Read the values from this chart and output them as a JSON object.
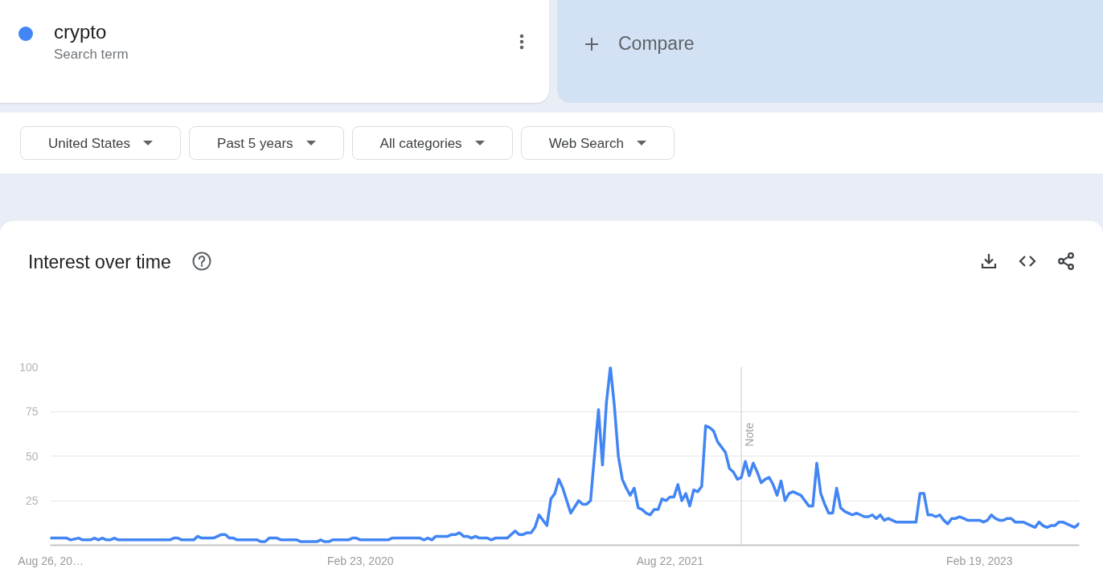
{
  "chart_data": {
    "type": "line",
    "title": "Interest over time",
    "annotations": [
      "Search term",
      "Compare",
      "United States",
      "Past 5 years",
      "All categories",
      "Web Search"
    ],
    "series": [
      {
        "name": "crypto",
        "color": "#4285f4",
        "x": [
          "2018-08-26",
          "2018-09-23",
          "2018-09-30",
          "2018-10-14",
          "2018-10-21",
          "2018-11-04",
          "2018-11-11",
          "2018-11-18",
          "2018-11-25",
          "2018-12-02",
          "2018-12-09",
          "2018-12-16",
          "2018-12-23",
          "2019-03-24",
          "2019-03-31",
          "2019-04-07",
          "2019-04-14",
          "2019-05-05",
          "2019-05-12",
          "2019-05-19",
          "2019-06-09",
          "2019-06-23",
          "2019-06-30",
          "2019-07-07",
          "2019-07-14",
          "2019-07-21",
          "2019-08-25",
          "2019-09-01",
          "2019-09-08",
          "2019-09-15",
          "2019-09-29",
          "2019-10-06",
          "2019-11-03",
          "2019-11-10",
          "2019-12-08",
          "2019-12-15",
          "2019-12-22",
          "2019-12-29",
          "2020-01-05",
          "2020-02-02",
          "2020-02-09",
          "2020-02-16",
          "2020-02-23",
          "2020-04-12",
          "2020-04-19",
          "2020-06-07",
          "2020-06-14",
          "2020-06-21",
          "2020-06-28",
          "2020-07-05",
          "2020-07-26",
          "2020-08-02",
          "2020-08-09",
          "2020-08-16",
          "2020-08-23",
          "2020-08-30",
          "2020-09-06",
          "2020-09-13",
          "2020-09-20",
          "2020-10-04",
          "2020-10-11",
          "2020-10-18",
          "2020-11-08",
          "2020-11-22",
          "2020-11-29",
          "2020-12-06",
          "2020-12-13",
          "2020-12-20",
          "2020-12-27",
          "2021-01-03",
          "2021-01-17",
          "2021-01-24",
          "2021-01-31",
          "2021-02-07",
          "2021-02-14",
          "2021-02-28",
          "2021-03-14",
          "2021-03-21",
          "2021-03-28",
          "2021-04-04",
          "2021-04-18",
          "2021-04-25",
          "2021-05-02",
          "2021-05-09",
          "2021-05-16",
          "2021-05-23",
          "2021-05-30",
          "2021-06-06",
          "2021-06-13",
          "2021-06-20",
          "2021-06-27",
          "2021-07-04",
          "2021-07-11",
          "2021-07-18",
          "2021-07-25",
          "2021-08-01",
          "2021-08-08",
          "2021-08-15",
          "2021-08-22",
          "2021-08-29",
          "2021-09-05",
          "2021-09-12",
          "2021-09-19",
          "2021-09-26",
          "2021-10-03",
          "2021-10-10",
          "2021-10-17",
          "2021-10-24",
          "2021-10-31",
          "2021-11-07",
          "2021-11-14",
          "2021-11-21",
          "2021-11-28",
          "2021-12-05",
          "2021-12-12",
          "2021-12-19",
          "2021-12-26",
          "2022-01-02",
          "2022-01-09",
          "2022-01-16",
          "2022-01-23",
          "2022-01-30",
          "2022-02-06",
          "2022-02-13",
          "2022-02-20",
          "2022-02-27",
          "2022-03-06",
          "2022-03-13",
          "2022-03-20",
          "2022-03-27",
          "2022-04-03",
          "2022-04-10",
          "2022-04-17",
          "2022-04-24",
          "2022-05-01",
          "2022-05-08",
          "2022-05-15",
          "2022-05-22",
          "2022-05-29",
          "2022-06-05",
          "2022-06-12",
          "2022-06-19",
          "2022-06-26",
          "2022-07-03",
          "2022-07-10",
          "2022-07-17",
          "2022-07-24",
          "2022-07-31",
          "2022-08-07",
          "2022-08-14",
          "2022-08-21",
          "2022-08-28",
          "2022-09-04",
          "2022-09-11",
          "2022-09-18",
          "2022-09-25",
          "2022-10-30",
          "2022-11-06",
          "2022-11-13",
          "2022-11-20",
          "2022-11-27",
          "2022-12-04",
          "2022-12-11",
          "2022-12-18",
          "2022-12-25",
          "2023-01-01",
          "2023-01-08",
          "2023-01-15",
          "2023-01-22",
          "2023-01-29",
          "2023-02-19",
          "2023-02-26",
          "2023-03-05",
          "2023-03-12",
          "2023-03-19",
          "2023-03-26",
          "2023-04-02",
          "2023-04-09",
          "2023-04-16",
          "2023-04-23",
          "2023-05-07",
          "2023-05-14",
          "2023-05-21",
          "2023-05-28",
          "2023-06-04",
          "2023-06-11",
          "2023-06-18",
          "2023-06-25",
          "2023-07-02",
          "2023-07-09",
          "2023-07-16",
          "2023-07-23",
          "2023-07-30",
          "2023-08-06",
          "2023-08-13"
        ],
        "values": [
          4,
          4,
          3,
          4,
          3,
          3,
          4,
          3,
          4,
          3,
          3,
          4,
          3,
          3,
          4,
          4,
          3,
          3,
          5,
          4,
          4,
          6,
          6,
          4,
          4,
          3,
          3,
          2,
          2,
          4,
          4,
          3,
          3,
          2,
          2,
          3,
          2,
          2,
          3,
          3,
          4,
          4,
          3,
          3,
          4,
          4,
          3,
          4,
          3,
          5,
          5,
          6,
          6,
          7,
          5,
          5,
          4,
          5,
          4,
          4,
          3,
          4,
          4,
          8,
          6,
          6,
          7,
          7,
          10,
          17,
          11,
          26,
          29,
          37,
          32,
          18,
          25,
          23,
          23,
          25,
          76,
          45,
          80,
          100,
          78,
          50,
          37,
          32,
          28,
          32,
          21,
          20,
          18,
          17,
          20,
          20,
          26,
          25,
          27,
          27,
          34,
          25,
          29,
          22,
          31,
          30,
          33,
          67,
          66,
          64,
          58,
          55,
          52,
          43,
          41,
          37,
          38,
          47,
          39,
          46,
          41,
          35,
          37,
          38,
          34,
          28,
          36,
          25,
          29,
          30,
          29,
          28,
          25,
          22,
          22,
          46,
          29,
          23,
          18,
          18,
          32,
          21,
          19,
          18,
          17,
          18,
          17,
          16,
          16,
          17,
          15,
          17,
          14,
          15,
          14,
          13,
          13,
          29,
          29,
          17,
          17,
          16,
          17,
          14,
          12,
          15,
          15,
          16,
          15,
          14,
          14,
          13,
          14,
          17,
          15,
          14,
          14,
          15,
          15,
          13,
          13,
          12,
          11,
          10,
          13,
          11,
          10,
          11,
          11,
          13,
          13,
          12,
          11,
          10,
          12
        ]
      }
    ],
    "xlim": [
      "2018-08-25",
      "2023-08-14"
    ],
    "xticks": [
      {
        "value": "2018-08-26",
        "label": "Aug 26, 20…"
      },
      {
        "value": "2020-02-23",
        "label": "Feb 23, 2020"
      },
      {
        "value": "2021-08-22",
        "label": "Aug 22, 2021"
      },
      {
        "value": "2023-02-19",
        "label": "Feb 19, 2023"
      }
    ],
    "ylim": [
      0,
      100
    ],
    "yticks": [
      25,
      50,
      75,
      100
    ],
    "grid": "y",
    "legend": "top left",
    "line_style": "solid",
    "ref_lines": [
      {
        "axis": "x",
        "value": "2021-12-26",
        "label": "Note",
        "color": "#cccccc"
      }
    ]
  }
}
